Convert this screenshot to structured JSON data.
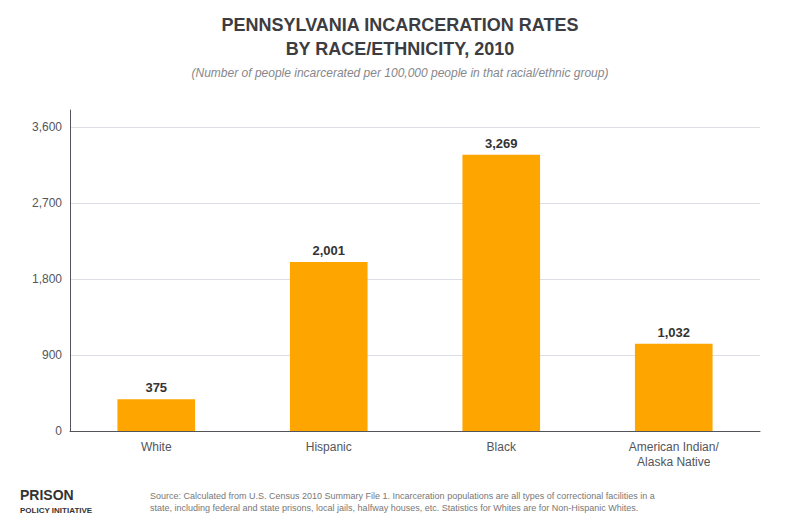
{
  "chart_data": {
    "type": "bar",
    "title": "PENNSYLVANIA INCARCERATION RATES\nBY RACE/ETHNICITY, 2010",
    "subtitle": "(Number of people incarcerated per 100,000 people in that racial/ethnic group)",
    "categories": [
      "White",
      "Hispanic",
      "Black",
      "American Indian/\nAlaska Native"
    ],
    "values": [
      375,
      2001,
      3269,
      1032
    ],
    "value_labels": [
      "375",
      "2,001",
      "3,269",
      "1,032"
    ],
    "data_labels": true,
    "color": "#FFA500",
    "ylim": [
      0,
      3800
    ],
    "yticks": [
      0,
      900,
      {
        "value": 1800,
        "label": "1,800"
      },
      {
        "value": 2700,
        "label": "2,700"
      },
      {
        "value": 3600,
        "label": "3,600"
      }
    ],
    "grid": true,
    "annotations": [
      "Source: Calculated from U.S. Census 2010 Summary File 1. Incarceration populations are all types of correctional facilities in a\nstate, including federal and state prisons, local jails, halfway houses, etc. Statistics for Whites are for Non-Hispanic Whites.",
      "PRISON",
      "POLICY INITIATIVE"
    ]
  }
}
